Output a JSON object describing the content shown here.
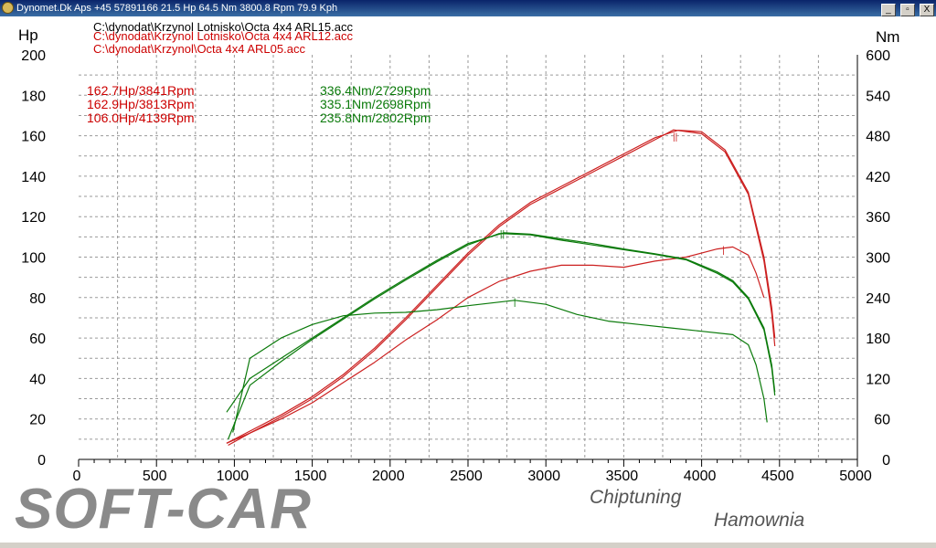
{
  "window": {
    "title": "Dynomet.Dk Aps +45 57891166  21.5 Hp 64.5 Nm 3800.8 Rpm 79.9 Kph",
    "buttons": [
      "_",
      "▫",
      "X"
    ]
  },
  "files": [
    {
      "label": "C:\\dynodat\\Krzynol Lotnisko\\Octa 4x4 ARL15.acc",
      "color": "#000000"
    },
    {
      "label": "C:\\dynodat\\Krzynol Lotnisko\\Octa 4x4 ARL12.acc",
      "color": "#cc0000"
    },
    {
      "label": "C:\\dynodat\\Krzynol\\Octa 4x4 ARL05.acc",
      "color": "#cc0000"
    }
  ],
  "chart_data": {
    "type": "line",
    "xlabel": "",
    "left_axis_label": "Hp",
    "right_axis_label": "Nm",
    "xlim": [
      0,
      5000
    ],
    "left_ylim": [
      0,
      200
    ],
    "right_ylim": [
      0,
      600
    ],
    "x_ticks": [
      "0",
      "500",
      "1000",
      "1500",
      "2000",
      "2500",
      "3000",
      "3500",
      "4000",
      "4500",
      "5000"
    ],
    "left_ticks": [
      "0",
      "20",
      "40",
      "60",
      "80",
      "100",
      "120",
      "140",
      "160",
      "180",
      "200"
    ],
    "right_ticks": [
      "0",
      "60",
      "120",
      "180",
      "240",
      "300",
      "360",
      "420",
      "480",
      "540",
      "600"
    ],
    "grid": true,
    "power_peaks": [
      "162.7Hp/3841Rpm",
      "162.9Hp/3813Rpm",
      "106.0Hp/4139Rpm"
    ],
    "torque_peaks": [
      "336.4Nm/2729Rpm",
      "335.1Nm/2698Rpm",
      "235.8Nm/2802Rpm"
    ],
    "series": [
      {
        "axis": "hp",
        "color": "#cc2020",
        "x": [
          950,
          1100,
          1300,
          1500,
          1700,
          1900,
          2100,
          2300,
          2500,
          2700,
          2900,
          3100,
          3300,
          3500,
          3700,
          3850,
          4000,
          4150,
          4300,
          4400,
          4450,
          4470
        ],
        "y": [
          8,
          14,
          22,
          31,
          42,
          55,
          70,
          86,
          102,
          116,
          127,
          135,
          143,
          151,
          159,
          162.7,
          162,
          153,
          132,
          100,
          75,
          60
        ]
      },
      {
        "axis": "hp",
        "color": "#cc2020",
        "x": [
          960,
          1100,
          1300,
          1500,
          1700,
          1900,
          2100,
          2300,
          2500,
          2700,
          2900,
          3100,
          3300,
          3500,
          3700,
          3820,
          4000,
          4150,
          4300,
          4400,
          4450,
          4470
        ],
        "y": [
          7,
          13,
          21,
          30,
          41,
          54,
          69,
          85,
          101,
          115,
          126,
          134,
          142,
          150,
          158,
          162.9,
          161,
          152,
          131,
          98,
          72,
          56
        ]
      },
      {
        "axis": "hp",
        "color": "#cc2020",
        "x": [
          950,
          1100,
          1300,
          1500,
          1700,
          1900,
          2100,
          2300,
          2500,
          2700,
          2900,
          3100,
          3300,
          3500,
          3700,
          3900,
          4100,
          4200,
          4300,
          4350,
          4400
        ],
        "y": [
          8,
          13,
          20,
          28,
          38,
          48,
          59,
          69,
          80,
          88,
          93,
          96,
          96,
          95,
          98,
          100,
          104,
          105,
          101,
          92,
          80
        ]
      },
      {
        "axis": "nm",
        "color": "#0a7a0a",
        "x": [
          950,
          1100,
          1300,
          1500,
          1700,
          1900,
          2100,
          2300,
          2500,
          2730,
          2900,
          3100,
          3300,
          3500,
          3700,
          3900,
          4100,
          4200,
          4300,
          4400,
          4450,
          4470
        ],
        "y": [
          70,
          120,
          150,
          180,
          210,
          240,
          268,
          295,
          320,
          336,
          334,
          327,
          320,
          312,
          305,
          297,
          278,
          265,
          240,
          195,
          140,
          100
        ]
      },
      {
        "axis": "nm",
        "color": "#0a7a0a",
        "x": [
          960,
          1100,
          1300,
          1500,
          1700,
          1900,
          2100,
          2300,
          2500,
          2700,
          2900,
          3100,
          3300,
          3500,
          3700,
          3900,
          4100,
          4200,
          4300,
          4400,
          4450,
          4470
        ],
        "y": [
          30,
          110,
          145,
          178,
          208,
          238,
          266,
          293,
          318,
          335,
          333,
          325,
          318,
          311,
          304,
          296,
          276,
          263,
          238,
          192,
          135,
          95
        ]
      },
      {
        "axis": "nm",
        "color": "#0a7a0a",
        "x": [
          990,
          1100,
          1300,
          1500,
          1700,
          1900,
          2100,
          2300,
          2500,
          2800,
          3000,
          3200,
          3400,
          3600,
          3800,
          4000,
          4200,
          4300,
          4350,
          4400,
          4420
        ],
        "y": [
          40,
          150,
          180,
          200,
          213,
          217,
          218,
          222,
          228,
          236,
          230,
          215,
          205,
          200,
          195,
          190,
          185,
          170,
          140,
          90,
          55
        ]
      }
    ],
    "markers": [
      {
        "axis": "hp",
        "x": 3830,
        "y": 158,
        "color": "#cc2020",
        "label": "||"
      },
      {
        "axis": "hp",
        "x": 4140,
        "y": 102,
        "color": "#cc2020",
        "label": "|"
      },
      {
        "axis": "nm",
        "x": 2720,
        "y": 330,
        "color": "#0a7a0a",
        "label": "||"
      },
      {
        "axis": "nm",
        "x": 2800,
        "y": 229,
        "color": "#0a7a0a",
        "label": "|"
      }
    ]
  },
  "brand": {
    "name": "SOFT-CAR",
    "sub1": "Chiptuning",
    "sub2": "Hamownia"
  }
}
